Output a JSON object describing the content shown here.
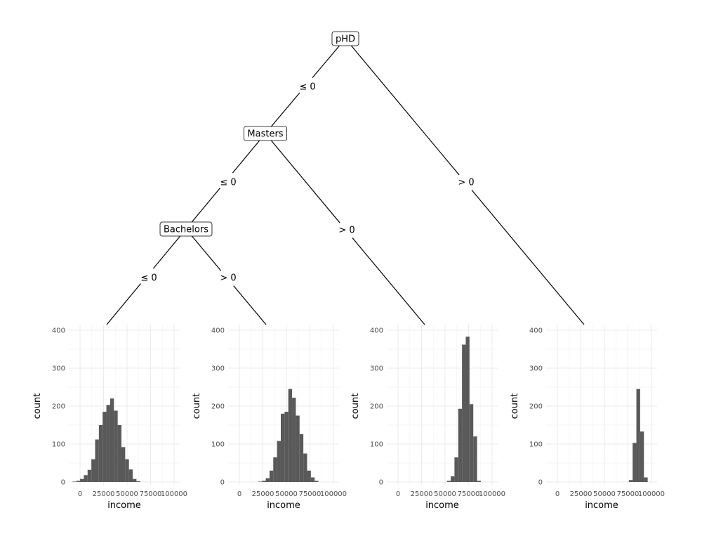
{
  "tree": {
    "nodes": [
      {
        "id": "phd",
        "label": "pHD"
      },
      {
        "id": "masters",
        "label": "Masters"
      },
      {
        "id": "bachelors",
        "label": "Bachelors"
      }
    ],
    "edges": [
      {
        "from": "phd",
        "to": "masters",
        "label": "≤  0"
      },
      {
        "from": "phd",
        "to": "leaf4",
        "label": ">  0"
      },
      {
        "from": "masters",
        "to": "bachelors",
        "label": "≤  0"
      },
      {
        "from": "masters",
        "to": "leaf3",
        "label": ">  0"
      },
      {
        "from": "bachelors",
        "to": "leaf1",
        "label": "≤  0"
      },
      {
        "from": "bachelors",
        "to": "leaf2",
        "label": ">  0"
      }
    ]
  },
  "chart_data": [
    {
      "type": "bar",
      "leaf": "leaf1",
      "xlabel": "income",
      "ylabel": "count",
      "xlim": [
        -12000,
        106000
      ],
      "ylim": [
        0,
        400
      ],
      "x_ticks": [
        "0",
        "25000",
        "50000",
        "75000",
        "100000"
      ],
      "y_ticks": [
        "0",
        "100",
        "200",
        "300",
        "400"
      ],
      "bin_width": 4000,
      "bins": [
        {
          "x": -6000,
          "count": 1
        },
        {
          "x": -2000,
          "count": 3
        },
        {
          "x": 2000,
          "count": 8
        },
        {
          "x": 6000,
          "count": 18
        },
        {
          "x": 10000,
          "count": 32
        },
        {
          "x": 14000,
          "count": 60
        },
        {
          "x": 18000,
          "count": 112
        },
        {
          "x": 22000,
          "count": 150
        },
        {
          "x": 26000,
          "count": 185
        },
        {
          "x": 30000,
          "count": 203
        },
        {
          "x": 34000,
          "count": 220
        },
        {
          "x": 38000,
          "count": 188
        },
        {
          "x": 42000,
          "count": 150
        },
        {
          "x": 46000,
          "count": 92
        },
        {
          "x": 50000,
          "count": 60
        },
        {
          "x": 54000,
          "count": 33
        },
        {
          "x": 58000,
          "count": 8
        },
        {
          "x": 62000,
          "count": 2
        }
      ]
    },
    {
      "type": "bar",
      "leaf": "leaf2",
      "xlabel": "income",
      "ylabel": "count",
      "xlim": [
        -12000,
        106000
      ],
      "ylim": [
        0,
        400
      ],
      "x_ticks": [
        "0",
        "25000",
        "50000",
        "75000",
        "100000"
      ],
      "y_ticks": [
        "0",
        "100",
        "200",
        "300",
        "400"
      ],
      "bin_width": 4000,
      "bins": [
        {
          "x": 22000,
          "count": 1
        },
        {
          "x": 26000,
          "count": 3
        },
        {
          "x": 30000,
          "count": 10
        },
        {
          "x": 34000,
          "count": 30
        },
        {
          "x": 38000,
          "count": 65
        },
        {
          "x": 42000,
          "count": 108
        },
        {
          "x": 46000,
          "count": 180
        },
        {
          "x": 50000,
          "count": 185
        },
        {
          "x": 54000,
          "count": 245
        },
        {
          "x": 58000,
          "count": 222
        },
        {
          "x": 62000,
          "count": 175
        },
        {
          "x": 66000,
          "count": 126
        },
        {
          "x": 70000,
          "count": 75
        },
        {
          "x": 74000,
          "count": 30
        },
        {
          "x": 78000,
          "count": 12
        },
        {
          "x": 82000,
          "count": 3
        }
      ]
    },
    {
      "type": "bar",
      "leaf": "leaf3",
      "xlabel": "income",
      "ylabel": "count",
      "xlim": [
        -12000,
        106000
      ],
      "ylim": [
        0,
        400
      ],
      "x_ticks": [
        "0",
        "25000",
        "50000",
        "75000",
        "100000"
      ],
      "y_ticks": [
        "0",
        "100",
        "200",
        "300",
        "400"
      ],
      "bin_width": 4000,
      "bins": [
        {
          "x": 54000,
          "count": 3
        },
        {
          "x": 58000,
          "count": 15
        },
        {
          "x": 62000,
          "count": 65
        },
        {
          "x": 66000,
          "count": 193
        },
        {
          "x": 70000,
          "count": 362
        },
        {
          "x": 74000,
          "count": 383
        },
        {
          "x": 78000,
          "count": 205
        },
        {
          "x": 82000,
          "count": 120
        },
        {
          "x": 86000,
          "count": 3
        }
      ]
    },
    {
      "type": "bar",
      "leaf": "leaf4",
      "xlabel": "income",
      "ylabel": "count",
      "xlim": [
        -12000,
        106000
      ],
      "ylim": [
        0,
        400
      ],
      "x_ticks": [
        "0",
        "25000",
        "50000",
        "75000",
        "100000"
      ],
      "y_ticks": [
        "0",
        "100",
        "200",
        "300",
        "400"
      ],
      "bin_width": 4000,
      "bins": [
        {
          "x": 78000,
          "count": 5
        },
        {
          "x": 82000,
          "count": 103
        },
        {
          "x": 86000,
          "count": 245
        },
        {
          "x": 90000,
          "count": 133
        },
        {
          "x": 94000,
          "count": 12
        }
      ]
    }
  ]
}
